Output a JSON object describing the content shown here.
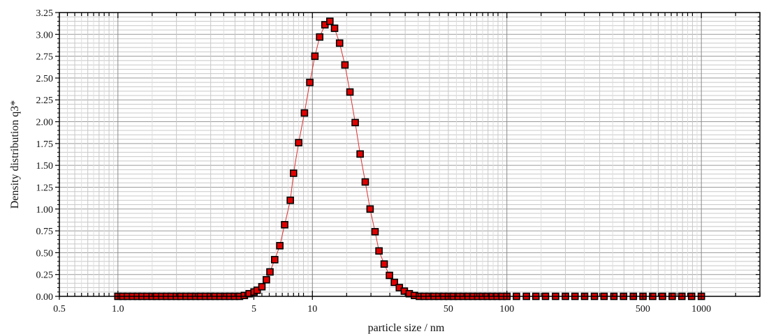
{
  "chart_data": {
    "type": "scatter",
    "title": "",
    "xlabel": "particle size / nm",
    "ylabel": "Density distribution q3*",
    "xscale": "log",
    "xlim": [
      0.5,
      2000
    ],
    "ylim": [
      0,
      3.25
    ],
    "grid": true,
    "legend": "none",
    "x_ticks": [
      {
        "value": 0.5,
        "label": "0.5"
      },
      {
        "value": 1,
        "label": "1.0"
      },
      {
        "value": 5,
        "label": "5"
      },
      {
        "value": 10,
        "label": "10"
      },
      {
        "value": 50,
        "label": "50"
      },
      {
        "value": 100,
        "label": "100"
      },
      {
        "value": 500,
        "label": "500"
      },
      {
        "value": 1000,
        "label": "1000"
      }
    ],
    "y_ticks": [
      {
        "value": 0,
        "label": "0.00"
      },
      {
        "value": 0.25,
        "label": "0.25"
      },
      {
        "value": 0.5,
        "label": "0.50"
      },
      {
        "value": 0.75,
        "label": "0.75"
      },
      {
        "value": 1.0,
        "label": "1.00"
      },
      {
        "value": 1.25,
        "label": "1.25"
      },
      {
        "value": 1.5,
        "label": "1.50"
      },
      {
        "value": 1.75,
        "label": "1.75"
      },
      {
        "value": 2.0,
        "label": "2.00"
      },
      {
        "value": 2.25,
        "label": "2.25"
      },
      {
        "value": 2.5,
        "label": "2.50"
      },
      {
        "value": 2.75,
        "label": "2.75"
      },
      {
        "value": 3.0,
        "label": "3.00"
      },
      {
        "value": 3.25,
        "label": "3.25"
      }
    ],
    "series": [
      {
        "marker": "square",
        "marker_color": "#e00000",
        "line_color": "#e03030",
        "points": [
          [
            1.0,
            0
          ],
          [
            1.06,
            0
          ],
          [
            1.12,
            0
          ],
          [
            1.19,
            0
          ],
          [
            1.26,
            0
          ],
          [
            1.33,
            0
          ],
          [
            1.41,
            0
          ],
          [
            1.5,
            0
          ],
          [
            1.58,
            0
          ],
          [
            1.68,
            0
          ],
          [
            1.78,
            0
          ],
          [
            1.88,
            0
          ],
          [
            2.0,
            0
          ],
          [
            2.11,
            0
          ],
          [
            2.24,
            0
          ],
          [
            2.37,
            0
          ],
          [
            2.51,
            0
          ],
          [
            2.66,
            0
          ],
          [
            2.82,
            0
          ],
          [
            2.99,
            0
          ],
          [
            3.16,
            0
          ],
          [
            3.35,
            0
          ],
          [
            3.55,
            0
          ],
          [
            3.76,
            0
          ],
          [
            3.98,
            0
          ],
          [
            4.22,
            0
          ],
          [
            4.47,
            0.01
          ],
          [
            4.73,
            0.03
          ],
          [
            5.01,
            0.05
          ],
          [
            5.2,
            0.07
          ],
          [
            5.5,
            0.11
          ],
          [
            5.8,
            0.19
          ],
          [
            6.05,
            0.28
          ],
          [
            6.4,
            0.42
          ],
          [
            6.8,
            0.58
          ],
          [
            7.2,
            0.82
          ],
          [
            7.7,
            1.1
          ],
          [
            8.0,
            1.41
          ],
          [
            8.5,
            1.76
          ],
          [
            9.1,
            2.1
          ],
          [
            9.7,
            2.45
          ],
          [
            10.3,
            2.75
          ],
          [
            10.9,
            2.97
          ],
          [
            11.6,
            3.11
          ],
          [
            12.3,
            3.15
          ],
          [
            13.0,
            3.07
          ],
          [
            13.8,
            2.9
          ],
          [
            14.7,
            2.65
          ],
          [
            15.6,
            2.34
          ],
          [
            16.6,
            1.99
          ],
          [
            17.6,
            1.63
          ],
          [
            18.7,
            1.31
          ],
          [
            19.8,
            1.0
          ],
          [
            21.0,
            0.74
          ],
          [
            22.0,
            0.52
          ],
          [
            23.4,
            0.37
          ],
          [
            24.9,
            0.24
          ],
          [
            26.4,
            0.16
          ],
          [
            28.0,
            0.1
          ],
          [
            29.7,
            0.06
          ],
          [
            31.5,
            0.03
          ],
          [
            33.5,
            0.01
          ],
          [
            35.5,
            0
          ],
          [
            37.6,
            0
          ],
          [
            39.8,
            0
          ],
          [
            42.2,
            0
          ],
          [
            44.7,
            0
          ],
          [
            47.3,
            0
          ],
          [
            50.1,
            0
          ],
          [
            53.1,
            0
          ],
          [
            56.2,
            0
          ],
          [
            59.6,
            0
          ],
          [
            63.1,
            0
          ],
          [
            66.8,
            0
          ],
          [
            70.8,
            0
          ],
          [
            75.0,
            0
          ],
          [
            79.4,
            0
          ],
          [
            84.1,
            0
          ],
          [
            89.1,
            0
          ],
          [
            94.4,
            0
          ],
          [
            100,
            0
          ],
          [
            112,
            0
          ],
          [
            126,
            0
          ],
          [
            141,
            0
          ],
          [
            158,
            0
          ],
          [
            178,
            0
          ],
          [
            200,
            0
          ],
          [
            224,
            0
          ],
          [
            251,
            0
          ],
          [
            282,
            0
          ],
          [
            316,
            0
          ],
          [
            355,
            0
          ],
          [
            398,
            0
          ],
          [
            447,
            0
          ],
          [
            501,
            0
          ],
          [
            562,
            0
          ],
          [
            631,
            0
          ],
          [
            708,
            0
          ],
          [
            794,
            0
          ],
          [
            891,
            0
          ],
          [
            1000,
            0
          ]
        ]
      }
    ]
  }
}
